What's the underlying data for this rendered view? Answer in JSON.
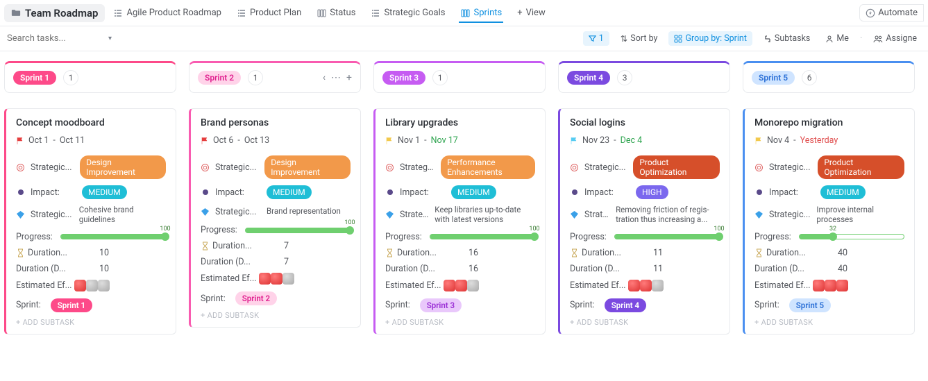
{
  "header": {
    "folder_title": "Team Roadmap",
    "tabs": [
      {
        "label": "Agile Product Roadmap"
      },
      {
        "label": "Product Plan"
      },
      {
        "label": "Status"
      },
      {
        "label": "Strategic Goals"
      },
      {
        "label": "Sprints",
        "active": true
      }
    ],
    "add_view_label": "View",
    "automate_label": "Automate"
  },
  "toolbar": {
    "search_placeholder": "Search tasks...",
    "filter_count": "1",
    "sort_label": "Sort by",
    "group_label": "Group by: Sprint",
    "subtasks_label": "Subtasks",
    "me_label": "Me",
    "assignee_label": "Assigne"
  },
  "field_labels": {
    "strategic_init": "Strategic...",
    "impact": "Impact:",
    "strategic_goal": "Strategic...",
    "progress": "Progress:",
    "duration_hours": "Duration...",
    "duration_days": "Duration (D...",
    "effort": "Estimated Ef...",
    "sprint": "Sprint:",
    "add_subtask": "+ ADD SUBTASK"
  },
  "columns": [
    {
      "id": "sprint1",
      "name": "Sprint 1",
      "count": "1",
      "accent": "#fd4a89",
      "pill_bg": "#fd4a89",
      "pill_fg": "#ffffff",
      "show_actions": false,
      "card": {
        "title": "Concept moodboard",
        "flag_color": "#e53e3e",
        "date_start": "Oct 1",
        "date_end": "Oct 11",
        "date_end_color": "",
        "initiative": {
          "label": "Design Improvement",
          "color": "orange"
        },
        "impact": {
          "label": "MEDIUM",
          "color": "teal"
        },
        "goal_text": "Cohesive brand guidelines",
        "progress": 100,
        "duration_hours": "10",
        "duration_days": "10",
        "effort": [
          "red",
          "grey",
          "grey"
        ],
        "sprint_pill": {
          "label": "Sprint 1",
          "bg": "#fd4a89",
          "fg": "#ffffff"
        }
      }
    },
    {
      "id": "sprint2",
      "name": "Sprint 2",
      "count": "1",
      "accent": "#f95bb0",
      "pill_bg": "#ffd3e9",
      "pill_fg": "#e0208f",
      "show_actions": true,
      "card": {
        "title": "Brand personas",
        "flag_color": "#e53e3e",
        "date_start": "Oct 6",
        "date_end": "Oct 13",
        "date_end_color": "",
        "initiative": {
          "label": "Design Improvement",
          "color": "orange"
        },
        "impact": {
          "label": "MEDIUM",
          "color": "teal"
        },
        "goal_text": "Brand representation",
        "progress": 100,
        "duration_hours": "7",
        "duration_days": "7",
        "effort": [
          "red",
          "red",
          "grey"
        ],
        "sprint_pill": {
          "label": "Sprint 2",
          "bg": "#ffd3e9",
          "fg": "#e0208f"
        }
      }
    },
    {
      "id": "sprint3",
      "name": "Sprint 3",
      "count": "1",
      "accent": "#c65cf2",
      "pill_bg": "#c65cf2",
      "pill_fg": "#ffffff",
      "show_actions": false,
      "card": {
        "title": "Library upgrades",
        "flag_color": "#f2c94c",
        "date_start": "Nov 1",
        "date_end": "Nov 17",
        "date_end_color": "green",
        "initiative": {
          "label": "Performance Enhancements",
          "color": "orange"
        },
        "impact": {
          "label": "MEDIUM",
          "color": "teal"
        },
        "goal_text": "Keep libraries up-to-date with latest versions",
        "progress": 100,
        "duration_hours": "16",
        "duration_days": "16",
        "effort": [
          "red",
          "red",
          "grey"
        ],
        "sprint_pill": {
          "label": "Sprint 3",
          "bg": "#e9c8fb",
          "fg": "#9b2fd6"
        }
      }
    },
    {
      "id": "sprint4",
      "name": "Sprint 4",
      "count": "3",
      "accent": "#7b4ae0",
      "pill_bg": "#7b4ae0",
      "pill_fg": "#ffffff",
      "show_actions": false,
      "card": {
        "title": "Social logins",
        "flag_color": "#56ccf2",
        "date_start": "Nov 23",
        "date_end": "Dec 4",
        "date_end_color": "green",
        "initiative": {
          "label": "Product Optimization",
          "color": "redorange"
        },
        "impact": {
          "label": "HIGH",
          "color": "purple"
        },
        "goal_text": "Removing friction of regis-tration thus increasing a...",
        "progress": 100,
        "duration_hours": "11",
        "duration_days": "11",
        "effort": [
          "red",
          "red",
          "grey"
        ],
        "sprint_pill": {
          "label": "Sprint 4",
          "bg": "#7b4ae0",
          "fg": "#ffffff"
        }
      }
    },
    {
      "id": "sprint5",
      "name": "Sprint 5",
      "count": "6",
      "accent": "#4a8ff0",
      "pill_bg": "#cfe4ff",
      "pill_fg": "#2a6fd6",
      "show_actions": false,
      "card": {
        "title": "Monorepo migration",
        "flag_color": "#f2c94c",
        "date_start": "Nov 4",
        "date_end": "Yesterday",
        "date_end_color": "red",
        "initiative": {
          "label": "Product Optimization",
          "color": "redorange"
        },
        "impact": {
          "label": "MEDIUM",
          "color": "teal"
        },
        "goal_text": "Improve internal processes",
        "progress": 32,
        "duration_hours": "40",
        "duration_days": "40",
        "effort": [
          "red",
          "red",
          "red"
        ],
        "sprint_pill": {
          "label": "Sprint 5",
          "bg": "#cfe4ff",
          "fg": "#2a6fd6"
        }
      }
    }
  ]
}
